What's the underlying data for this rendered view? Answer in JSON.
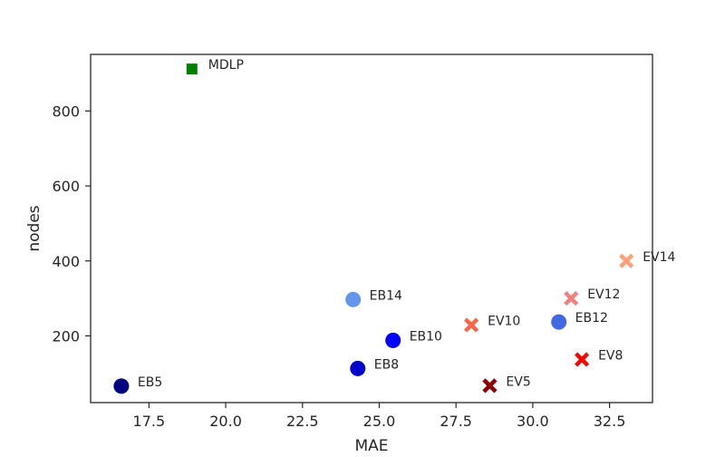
{
  "chart_data": {
    "type": "scatter",
    "title": "",
    "xlabel": "MAE",
    "ylabel": "nodes",
    "xlim": [
      15.6,
      33.9
    ],
    "ylim": [
      22,
      951
    ],
    "grid": false,
    "legend": "none",
    "xticks": [
      17.5,
      20.0,
      22.5,
      25.0,
      27.5,
      30.0,
      32.5
    ],
    "xtick_labels": [
      "17.5",
      "20.0",
      "22.5",
      "25.0",
      "27.5",
      "30.0",
      "32.5"
    ],
    "yticks": [
      200,
      400,
      600,
      800
    ],
    "ytick_labels": [
      "200",
      "400",
      "600",
      "800"
    ],
    "points": [
      {
        "label": "MDLP",
        "x": 18.9,
        "y": 912,
        "marker": "square",
        "color": "#008000"
      },
      {
        "label": "EB5",
        "x": 16.6,
        "y": 66,
        "marker": "circle",
        "color": "#000080"
      },
      {
        "label": "EB8",
        "x": 24.3,
        "y": 113,
        "marker": "circle",
        "color": "#0000cd"
      },
      {
        "label": "EB10",
        "x": 25.45,
        "y": 188,
        "marker": "circle",
        "color": "#0000ff"
      },
      {
        "label": "EB12",
        "x": 30.85,
        "y": 237,
        "marker": "circle",
        "color": "#4169e1"
      },
      {
        "label": "EB14",
        "x": 24.15,
        "y": 297,
        "marker": "circle",
        "color": "#6495ed"
      },
      {
        "label": "EV5",
        "x": 28.6,
        "y": 67,
        "marker": "x",
        "color": "#8b0000"
      },
      {
        "label": "EV8",
        "x": 31.6,
        "y": 137,
        "marker": "x",
        "color": "#ff0000"
      },
      {
        "label": "EV10",
        "x": 28.0,
        "y": 229,
        "marker": "x",
        "color": "#ff6347"
      },
      {
        "label": "EV12",
        "x": 31.25,
        "y": 300,
        "marker": "x",
        "color": "#f08080"
      },
      {
        "label": "EV14",
        "x": 33.05,
        "y": 400,
        "marker": "x",
        "color": "#ffa07a"
      }
    ]
  }
}
